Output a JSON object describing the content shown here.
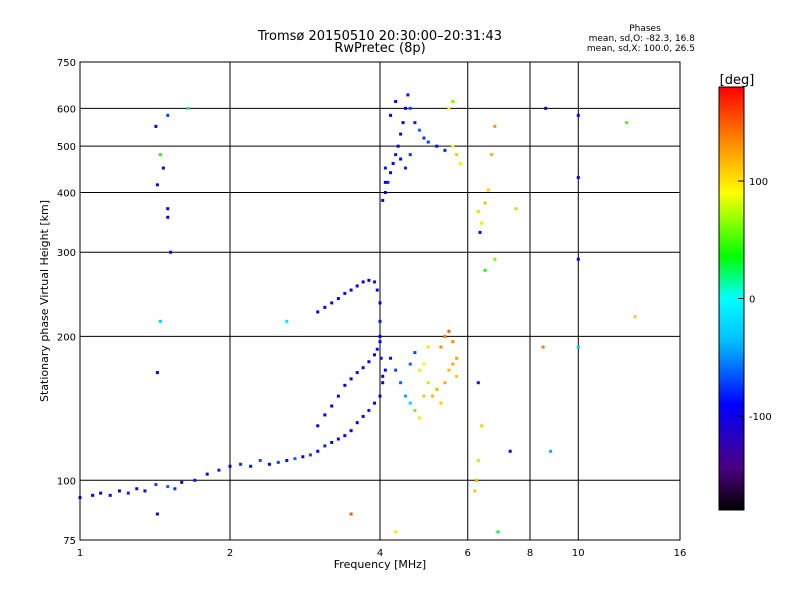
{
  "chart_data": {
    "type": "scatter",
    "title": "Tromsø 20150510 20:30:00–20:31:43",
    "subtitle": "RwPretec (8p)",
    "xlabel": "Frequency [MHz]",
    "ylabel": "Stationary phase Virtual Height [km]",
    "x_scale": "log",
    "y_scale": "log",
    "xlim": [
      1,
      16
    ],
    "ylim": [
      75,
      750
    ],
    "x_ticks": [
      1,
      2,
      4,
      6,
      8,
      10,
      16
    ],
    "y_ticks": [
      75,
      100,
      200,
      300,
      400,
      500,
      600,
      750
    ],
    "grid": true,
    "stats": {
      "heading": "Phases",
      "line1": "mean, sd,O: -82.3, 16.8",
      "line2": "mean, sd,X: 100.0, 26.5"
    },
    "colorbar": {
      "label": "[deg]",
      "range": [
        -180,
        180
      ],
      "ticks": [
        "100",
        "0",
        "-100"
      ],
      "tick_values": [
        100,
        0,
        -100
      ]
    },
    "colors": {
      "frame": "#000000",
      "background": "#ffffff"
    },
    "series": [
      {
        "points": [
          [
            1.0,
            92,
            -95
          ],
          [
            1.06,
            93,
            -90
          ],
          [
            1.1,
            94,
            -100
          ],
          [
            1.15,
            93,
            -85
          ],
          [
            1.2,
            95,
            -95
          ],
          [
            1.25,
            94,
            -80
          ],
          [
            1.3,
            96,
            -100
          ],
          [
            1.35,
            95,
            -90
          ],
          [
            1.42,
            98,
            -70
          ],
          [
            1.5,
            97,
            -60
          ],
          [
            1.55,
            96,
            -75
          ],
          [
            1.6,
            99,
            -95
          ],
          [
            1.7,
            100,
            -85
          ],
          [
            1.8,
            103,
            -95
          ],
          [
            1.9,
            105,
            -80
          ],
          [
            2.0,
            107,
            -90
          ],
          [
            2.1,
            108,
            -75
          ],
          [
            2.2,
            107,
            -85
          ],
          [
            2.3,
            110,
            -65
          ],
          [
            2.4,
            108,
            -95
          ],
          [
            2.5,
            109,
            -70
          ],
          [
            2.6,
            110,
            -85
          ],
          [
            2.7,
            111,
            -60
          ],
          [
            2.8,
            112,
            -95
          ],
          [
            2.9,
            113,
            -70
          ],
          [
            3.0,
            115,
            -90
          ],
          [
            3.1,
            118,
            -80
          ],
          [
            3.2,
            120,
            -95
          ],
          [
            3.3,
            122,
            -85
          ],
          [
            3.4,
            124,
            -100
          ],
          [
            3.5,
            127,
            -95
          ],
          [
            3.6,
            132,
            -90
          ],
          [
            3.7,
            136,
            -100
          ],
          [
            3.8,
            140,
            -85
          ],
          [
            3.9,
            145,
            -95
          ],
          [
            4.0,
            150,
            -90
          ],
          [
            4.05,
            160,
            -100
          ],
          [
            4.1,
            170,
            -95
          ]
        ]
      },
      {
        "points": [
          [
            3.0,
            130,
            -100
          ],
          [
            3.1,
            137,
            -95
          ],
          [
            3.2,
            143,
            -90
          ],
          [
            3.3,
            150,
            -100
          ],
          [
            3.4,
            158,
            -95
          ],
          [
            3.5,
            163,
            -90
          ],
          [
            3.6,
            168,
            -85
          ],
          [
            3.7,
            172,
            -100
          ],
          [
            3.8,
            177,
            -95
          ],
          [
            3.9,
            183,
            -90
          ],
          [
            3.95,
            188,
            -85
          ],
          [
            4.0,
            195,
            -100
          ]
        ]
      },
      {
        "points": [
          [
            3.0,
            225,
            -95
          ],
          [
            3.1,
            230,
            -100
          ],
          [
            3.2,
            235,
            -90
          ],
          [
            3.3,
            240,
            -95
          ],
          [
            3.4,
            246,
            -85
          ],
          [
            3.5,
            250,
            -90
          ],
          [
            3.6,
            255,
            -100
          ],
          [
            3.7,
            260,
            -95
          ],
          [
            3.8,
            262,
            -90
          ],
          [
            3.9,
            260,
            -85
          ],
          [
            3.95,
            250,
            -95
          ],
          [
            4.0,
            235,
            -90
          ],
          [
            4.0,
            215,
            -85
          ],
          [
            4.0,
            200,
            -95
          ],
          [
            4.02,
            180,
            -100
          ],
          [
            4.05,
            165,
            -90
          ]
        ]
      },
      {
        "points": [
          [
            4.05,
            385,
            -95
          ],
          [
            4.1,
            400,
            -90
          ],
          [
            4.15,
            420,
            -80
          ],
          [
            4.2,
            440,
            -100
          ],
          [
            4.25,
            460,
            -95
          ],
          [
            4.3,
            480,
            -85
          ],
          [
            4.35,
            500,
            -90
          ],
          [
            4.4,
            530,
            -100
          ],
          [
            4.45,
            560,
            -95
          ],
          [
            4.5,
            600,
            -90
          ],
          [
            4.55,
            640,
            -85
          ],
          [
            4.6,
            600,
            -70
          ],
          [
            4.7,
            560,
            -80
          ],
          [
            4.8,
            540,
            -60
          ],
          [
            4.9,
            520,
            -75
          ],
          [
            5.0,
            510,
            -70
          ],
          [
            5.2,
            500,
            -85
          ],
          [
            5.4,
            490,
            -80
          ],
          [
            5.6,
            500,
            90
          ],
          [
            5.7,
            480,
            110
          ],
          [
            5.8,
            460,
            95
          ],
          [
            5.6,
            620,
            60
          ],
          [
            5.5,
            600,
            90
          ],
          [
            4.3,
            620,
            -90
          ],
          [
            4.2,
            580,
            -95
          ],
          [
            4.1,
            450,
            -85
          ],
          [
            4.1,
            420,
            -90
          ],
          [
            4.5,
            450,
            -80
          ],
          [
            4.6,
            480,
            -75
          ],
          [
            4.4,
            470,
            -95
          ]
        ]
      },
      {
        "points": [
          [
            4.2,
            180,
            -85
          ],
          [
            4.3,
            170,
            -70
          ],
          [
            4.4,
            160,
            -60
          ],
          [
            4.5,
            150,
            -40
          ],
          [
            4.6,
            145,
            -20
          ],
          [
            4.7,
            140,
            60
          ],
          [
            4.8,
            135,
            100
          ],
          [
            4.9,
            150,
            110
          ],
          [
            5.0,
            160,
            105
          ],
          [
            5.1,
            150,
            115
          ],
          [
            5.2,
            155,
            120
          ],
          [
            5.3,
            145,
            110
          ],
          [
            5.4,
            160,
            120
          ],
          [
            5.5,
            170,
            115
          ],
          [
            5.6,
            175,
            120
          ],
          [
            5.7,
            165,
            110
          ],
          [
            5.3,
            190,
            130
          ],
          [
            5.4,
            200,
            140
          ],
          [
            5.5,
            205,
            150
          ],
          [
            5.6,
            195,
            135
          ],
          [
            5.7,
            180,
            125
          ],
          [
            5.0,
            190,
            100
          ],
          [
            4.9,
            175,
            95
          ],
          [
            4.8,
            170,
            80
          ],
          [
            4.7,
            185,
            -70
          ],
          [
            4.6,
            175,
            -60
          ]
        ]
      },
      {
        "points": [
          [
            6.2,
            95,
            110
          ],
          [
            6.25,
            100,
            120
          ],
          [
            6.3,
            110,
            105
          ],
          [
            6.4,
            130,
            110
          ],
          [
            6.3,
            160,
            -85
          ],
          [
            6.35,
            330,
            -95
          ],
          [
            6.4,
            345,
            100
          ],
          [
            6.3,
            365,
            105
          ],
          [
            6.5,
            380,
            115
          ],
          [
            6.6,
            405,
            110
          ],
          [
            6.7,
            480,
            120
          ],
          [
            6.8,
            550,
            130
          ],
          [
            6.5,
            275,
            40
          ],
          [
            6.8,
            290,
            60
          ],
          [
            7.5,
            370,
            70
          ],
          [
            7.3,
            115,
            -100
          ],
          [
            6.9,
            78,
            30
          ],
          [
            8.5,
            190,
            140
          ],
          [
            8.8,
            115,
            -40
          ],
          [
            10.0,
            430,
            -95
          ],
          [
            10.0,
            290,
            -100
          ],
          [
            10.0,
            190,
            -30
          ],
          [
            10.0,
            580,
            -90
          ],
          [
            8.6,
            600,
            -100
          ],
          [
            12.5,
            560,
            50
          ],
          [
            13.0,
            220,
            110
          ],
          [
            3.5,
            85,
            150
          ],
          [
            4.3,
            78,
            100
          ],
          [
            1.43,
            168,
            -100
          ],
          [
            1.43,
            85,
            -110
          ],
          [
            1.45,
            215,
            -20
          ],
          [
            1.43,
            415,
            -90
          ],
          [
            1.42,
            550,
            -95
          ],
          [
            1.45,
            480,
            40
          ],
          [
            1.47,
            450,
            -100
          ],
          [
            1.5,
            370,
            -95
          ],
          [
            1.5,
            355,
            -90
          ],
          [
            1.52,
            300,
            -95
          ],
          [
            1.5,
            580,
            -70
          ],
          [
            1.65,
            600,
            20
          ],
          [
            2.6,
            215,
            -10
          ]
        ]
      }
    ]
  }
}
